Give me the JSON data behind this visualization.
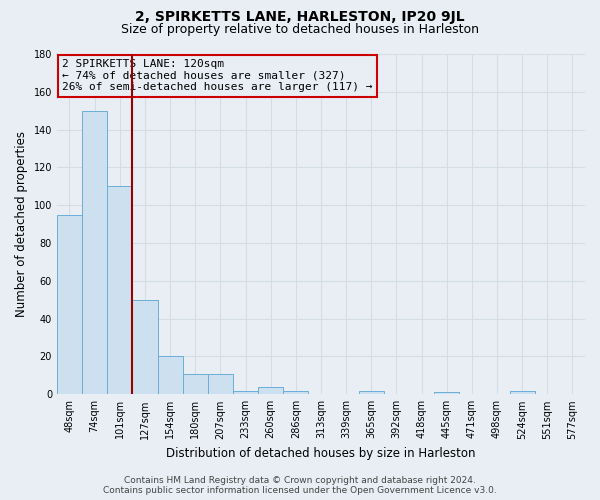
{
  "title": "2, SPIRKETTS LANE, HARLESTON, IP20 9JL",
  "subtitle": "Size of property relative to detached houses in Harleston",
  "xlabel": "Distribution of detached houses by size in Harleston",
  "ylabel": "Number of detached properties",
  "bar_labels": [
    "48sqm",
    "74sqm",
    "101sqm",
    "127sqm",
    "154sqm",
    "180sqm",
    "207sqm",
    "233sqm",
    "260sqm",
    "286sqm",
    "313sqm",
    "339sqm",
    "365sqm",
    "392sqm",
    "418sqm",
    "445sqm",
    "471sqm",
    "498sqm",
    "524sqm",
    "551sqm",
    "577sqm"
  ],
  "bar_heights": [
    95,
    150,
    110,
    50,
    20,
    11,
    11,
    2,
    4,
    2,
    0,
    0,
    2,
    0,
    0,
    1,
    0,
    0,
    2,
    0,
    0
  ],
  "bar_color": "#cce0f0",
  "bar_edge_color": "#6aaed6",
  "ylim": [
    0,
    180
  ],
  "yticks": [
    0,
    20,
    40,
    60,
    80,
    100,
    120,
    140,
    160,
    180
  ],
  "property_line_x": 2.5,
  "property_line_label": "2 SPIRKETTS LANE: 120sqm",
  "annotation_line1": "← 74% of detached houses are smaller (327)",
  "annotation_line2": "26% of semi-detached houses are larger (117) →",
  "annotation_box_color": "#cc0000",
  "footer_line1": "Contains HM Land Registry data © Crown copyright and database right 2024.",
  "footer_line2": "Contains public sector information licensed under the Open Government Licence v3.0.",
  "bg_color": "#e8eef4",
  "grid_color": "#d4dce6",
  "title_fontsize": 10,
  "subtitle_fontsize": 9,
  "axis_label_fontsize": 8.5,
  "tick_fontsize": 7,
  "annotation_fontsize": 8,
  "footer_fontsize": 6.5
}
